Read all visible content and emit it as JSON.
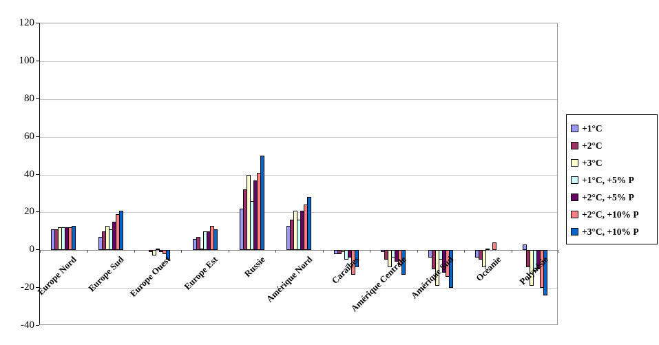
{
  "chart_data": {
    "type": "bar",
    "title": "",
    "xlabel": "",
    "ylabel": "",
    "ylim": [
      -40,
      120
    ],
    "ytick_step": 20,
    "grid": true,
    "legend_position": "right",
    "categories": [
      "Europe Nord",
      "Europe Sud",
      "Europe Ouest",
      "Europe Est",
      "Russie",
      "Amérique Nord",
      "Caraïbes",
      "Amérique Centrale",
      "Amérique Sud",
      "Océanie",
      "Polynésie"
    ],
    "series": [
      {
        "name": "+1°C",
        "color": "#9999FF",
        "values": [
          11,
          7,
          0,
          6,
          22,
          13,
          -2,
          -1,
          -4,
          -4,
          3
        ]
      },
      {
        "name": "+2°C",
        "color": "#993366",
        "values": [
          11,
          10,
          -1,
          7,
          32,
          16,
          -2,
          -5,
          -10,
          -5,
          -9
        ]
      },
      {
        "name": "+3°C",
        "color": "#FFFFCC",
        "values": [
          12,
          13,
          -3,
          1,
          40,
          21,
          -1,
          -9,
          -19,
          -9,
          -19
        ]
      },
      {
        "name": "+1°C, +5% P",
        "color": "#CCFFFF",
        "values": [
          12,
          11,
          1,
          10,
          26,
          16,
          -5,
          -4,
          -5,
          1,
          -11
        ]
      },
      {
        "name": "+2°C, +5% P",
        "color": "#660066",
        "values": [
          12,
          15,
          -1,
          10,
          37,
          21,
          -4,
          -6,
          -12,
          0,
          -10
        ]
      },
      {
        "name": "+2°C, +10% P",
        "color": "#FF8080",
        "values": [
          12,
          19,
          -2,
          13,
          41,
          24,
          -13,
          -8,
          -14,
          4,
          -20
        ]
      },
      {
        "name": "+3°C, +10% P",
        "color": "#0066CC",
        "values": [
          13,
          21,
          -5,
          11,
          50,
          28,
          -9,
          -13,
          -20,
          0,
          -24
        ]
      }
    ],
    "colors": {
      "background": "#ffffff",
      "gridline": "#c6c6c6",
      "axis": "#000000",
      "plot_border": "#9a9a9a",
      "bar_border": "#000000"
    }
  }
}
